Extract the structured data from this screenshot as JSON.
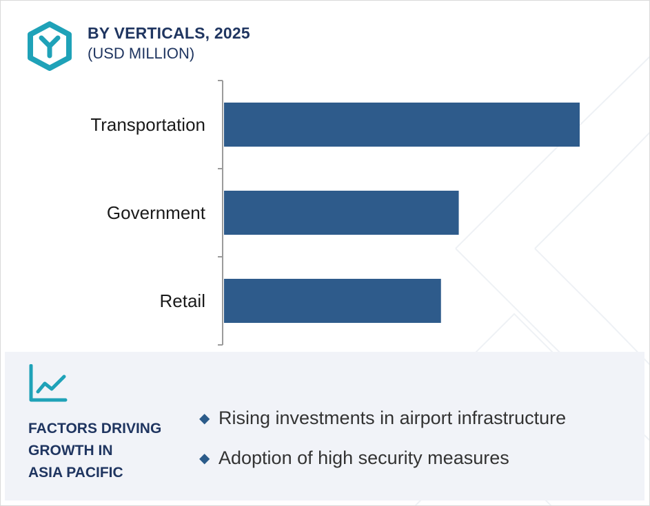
{
  "header": {
    "title": "BY VERTICALS, 2025",
    "subtitle": "(USD MILLION)"
  },
  "chart_data": {
    "type": "bar",
    "orientation": "horizontal",
    "title": "BY VERTICALS, 2025",
    "subtitle": "(USD MILLION)",
    "categories": [
      "Transportation",
      "Government",
      "Retail"
    ],
    "values": [
      100,
      66,
      61
    ],
    "xlabel": "",
    "ylabel": "",
    "xlim": [
      0,
      100
    ],
    "grid": false,
    "legend": "none",
    "bar_color": "#2e5b8b"
  },
  "factors": {
    "heading_lines": [
      "FACTORS DRIVING",
      "GROWTH IN",
      "ASIA PACIFIC"
    ],
    "items": [
      "Rising investments in airport infrastructure",
      "Adoption of high security measures"
    ]
  },
  "icons": {
    "logo": "hexagon-y-logo-icon",
    "trend": "line-chart-trend-icon",
    "bullet": "diamond-bullet-icon"
  },
  "colors": {
    "accent": "#1fa2b8",
    "title": "#1f3560",
    "bar": "#2e5b8b",
    "panel": "#f1f3f8"
  }
}
